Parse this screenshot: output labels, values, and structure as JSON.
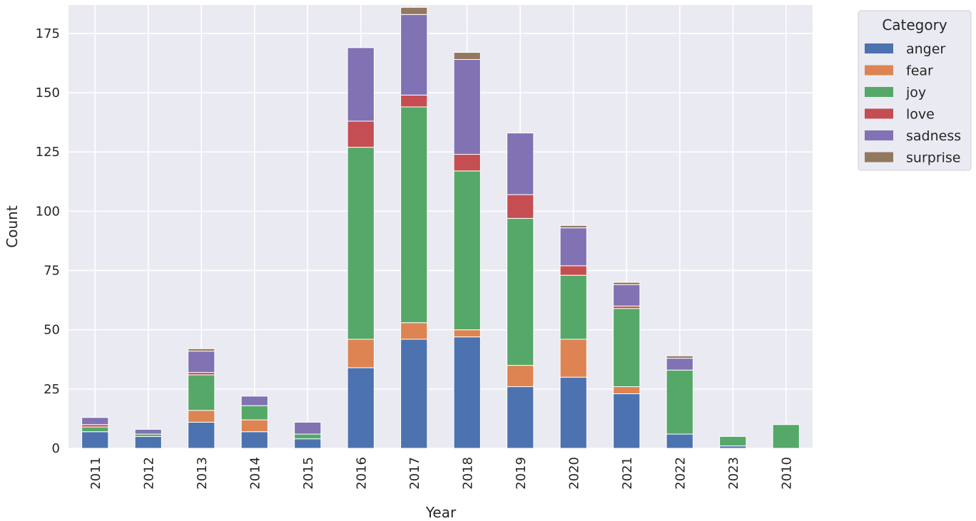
{
  "chart_data": {
    "type": "bar",
    "stacked": true,
    "title": "",
    "xlabel": "Year",
    "ylabel": "Count",
    "ylim": [
      0,
      187
    ],
    "yticks": [
      0,
      25,
      50,
      75,
      100,
      125,
      150,
      175
    ],
    "categories": [
      "2011",
      "2012",
      "2013",
      "2014",
      "2015",
      "2016",
      "2017",
      "2018",
      "2019",
      "2020",
      "2021",
      "2022",
      "2023",
      "2010"
    ],
    "legend": {
      "title": "Category",
      "placement": "outside-top-right"
    },
    "series": [
      {
        "name": "anger",
        "color": "#4c72b0",
        "values": [
          7,
          5,
          11,
          7,
          4,
          34,
          46,
          47,
          26,
          30,
          23,
          6,
          1,
          0
        ]
      },
      {
        "name": "fear",
        "color": "#dd8452",
        "values": [
          0,
          0,
          5,
          5,
          0,
          12,
          7,
          3,
          9,
          16,
          3,
          0,
          0,
          0
        ]
      },
      {
        "name": "joy",
        "color": "#55a868",
        "values": [
          2,
          1,
          15,
          6,
          2,
          81,
          91,
          67,
          62,
          27,
          33,
          27,
          4,
          10
        ]
      },
      {
        "name": "love",
        "color": "#c44e52",
        "values": [
          1,
          0,
          1,
          0,
          0,
          11,
          5,
          7,
          10,
          4,
          1,
          0,
          0,
          0
        ]
      },
      {
        "name": "sadness",
        "color": "#8172b3",
        "values": [
          3,
          2,
          9,
          4,
          5,
          31,
          34,
          40,
          26,
          16,
          9,
          5,
          0,
          0
        ]
      },
      {
        "name": "surprise",
        "color": "#937860",
        "values": [
          0,
          0,
          1,
          0,
          0,
          0,
          3,
          3,
          0,
          1,
          1,
          1,
          0,
          0
        ]
      }
    ]
  }
}
